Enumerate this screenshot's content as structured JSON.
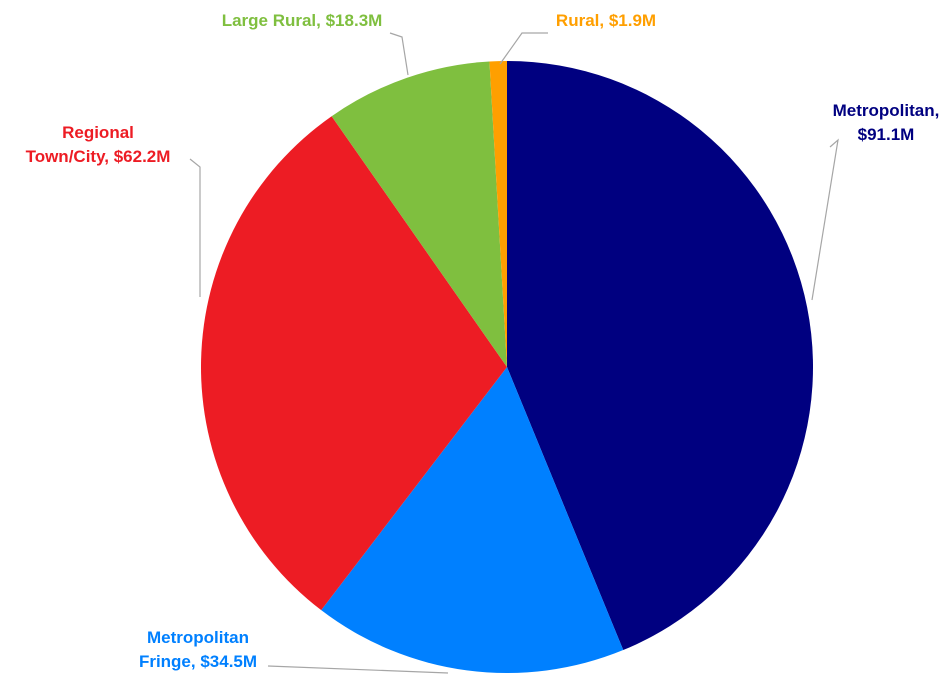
{
  "chart_data": {
    "type": "pie",
    "start_angle_deg": 0,
    "direction": "clockwise",
    "unit": "$M",
    "slices": [
      {
        "category": "Metropolitan",
        "value": 91.1,
        "label_lines": [
          "Metropolitan,",
          "$91.1M"
        ],
        "color": "#000080"
      },
      {
        "category": "Metropolitan Fringe",
        "value": 34.5,
        "label_lines": [
          "Metropolitan",
          "Fringe, $34.5M"
        ],
        "color": "#0080ff"
      },
      {
        "category": "Regional Town/City",
        "value": 62.2,
        "label_lines": [
          "Regional",
          "Town/City, $62.2M"
        ],
        "color": "#ed1c24"
      },
      {
        "category": "Large Rural",
        "value": 18.3,
        "label_lines": [
          "Large Rural, $18.3M"
        ],
        "color": "#7fbf3f"
      },
      {
        "category": "Rural",
        "value": 1.9,
        "label_lines": [
          "Rural, $1.9M"
        ],
        "color": "#ff9f00"
      }
    ],
    "labels_outside": true,
    "leader_line_color": "#a6a6a6",
    "legend": "none"
  }
}
